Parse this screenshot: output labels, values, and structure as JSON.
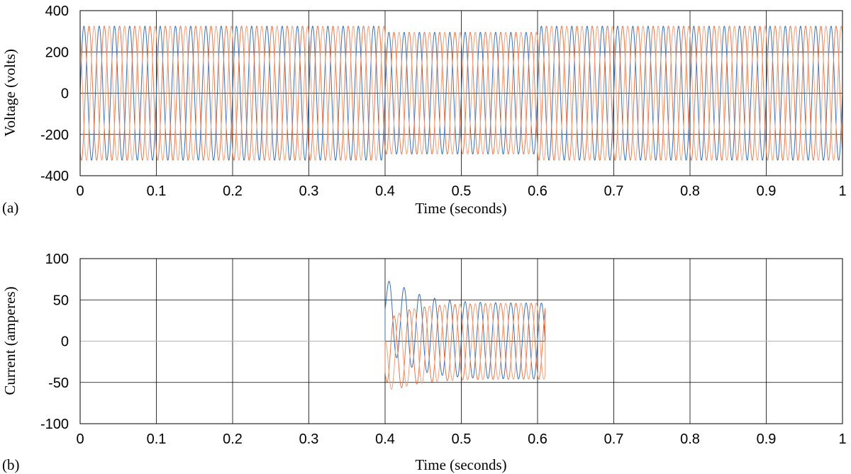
{
  "chart_data": [
    {
      "type": "line",
      "panel_label": "(a)",
      "xlabel": "Time (seconds)",
      "ylabel": "Voltage (volts)",
      "xlim": [
        0,
        1
      ],
      "ylim": [
        -400,
        400
      ],
      "xticks": [
        0,
        0.1,
        0.2,
        0.3,
        0.4,
        0.5,
        0.6,
        0.7,
        0.8,
        0.9,
        1
      ],
      "xtick_labels": [
        "0",
        "0.1",
        "0.2",
        "0.3",
        "0.4",
        "0.5",
        "0.6",
        "0.7",
        "0.8",
        "0.9",
        "1"
      ],
      "yticks": [
        400,
        200,
        0,
        -200,
        -400
      ],
      "ytick_labels": [
        "400",
        "200",
        "0",
        "-200",
        "-400"
      ],
      "grid": true,
      "frequency_hz": 50,
      "segments": [
        {
          "t_start": 0.0,
          "t_end": 0.4,
          "amplitude": 325
        },
        {
          "t_start": 0.4,
          "t_end": 0.6,
          "amplitude": 295
        },
        {
          "t_start": 0.6,
          "t_end": 1.0,
          "amplitude": 325
        }
      ],
      "series": [
        {
          "phase_deg": 0,
          "color": "#3a6fb5"
        },
        {
          "phase_deg": -120,
          "color": "#e8764a"
        },
        {
          "phase_deg": 120,
          "color": "#f2a07a"
        }
      ]
    },
    {
      "type": "line",
      "panel_label": "(b)",
      "xlabel": "Time (seconds)",
      "ylabel": "Current (amperes)",
      "xlim": [
        0,
        1
      ],
      "ylim": [
        -100,
        100
      ],
      "xticks": [
        0,
        0.1,
        0.2,
        0.3,
        0.4,
        0.5,
        0.6,
        0.7,
        0.8,
        0.9,
        1
      ],
      "xtick_labels": [
        "0",
        "0.1",
        "0.2",
        "0.3",
        "0.4",
        "0.5",
        "0.6",
        "0.7",
        "0.8",
        "0.9",
        "1"
      ],
      "yticks": [
        100,
        50,
        0,
        -50,
        -100
      ],
      "ytick_labels": [
        "100",
        "50",
        "0",
        "-50",
        "-100"
      ],
      "grid": true,
      "frequency_hz": 50,
      "fault_start": 0.4,
      "fault_end": 0.61,
      "steady_amplitude": 46,
      "transient_peak": 85,
      "decay_time_constant": 0.035,
      "baseline_value": 0,
      "series": [
        {
          "phase_deg": 0,
          "color": "#3a6fb5"
        },
        {
          "phase_deg": -120,
          "color": "#e8764a"
        },
        {
          "phase_deg": 120,
          "color": "#f2a07a"
        }
      ]
    }
  ]
}
